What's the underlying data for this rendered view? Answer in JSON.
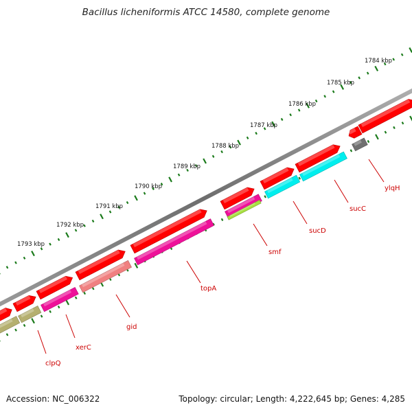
{
  "title": "Bacillus licheniformis ATCC 14580, complete genome",
  "accession": "Accession: NC_006322",
  "summary": "Topology: circular; Length: 4,222,645 bp; Genes: 4,285",
  "colors": {
    "backbone": "#808080",
    "tick": "#1a7a1a",
    "cds": "#ff0000",
    "label": "#cc0000",
    "magenta": "#ee1199",
    "salmon": "#f08080",
    "olive": "#b5b070",
    "cyan": "#00eeee",
    "lime": "#a8e040",
    "gray": "#707070"
  },
  "scale_labels": [
    "1784 kbp",
    "1785 kbp",
    "1786 kbp",
    "1787 kbp",
    "1788 kbp",
    "1789 kbp",
    "1790 kbp",
    "1791 kbp",
    "1792 kbp",
    "1793 kbp"
  ],
  "genes": [
    "ylqH",
    "sucC",
    "sucD",
    "smf",
    "topA",
    "gid",
    "xerC",
    "clpQ"
  ]
}
